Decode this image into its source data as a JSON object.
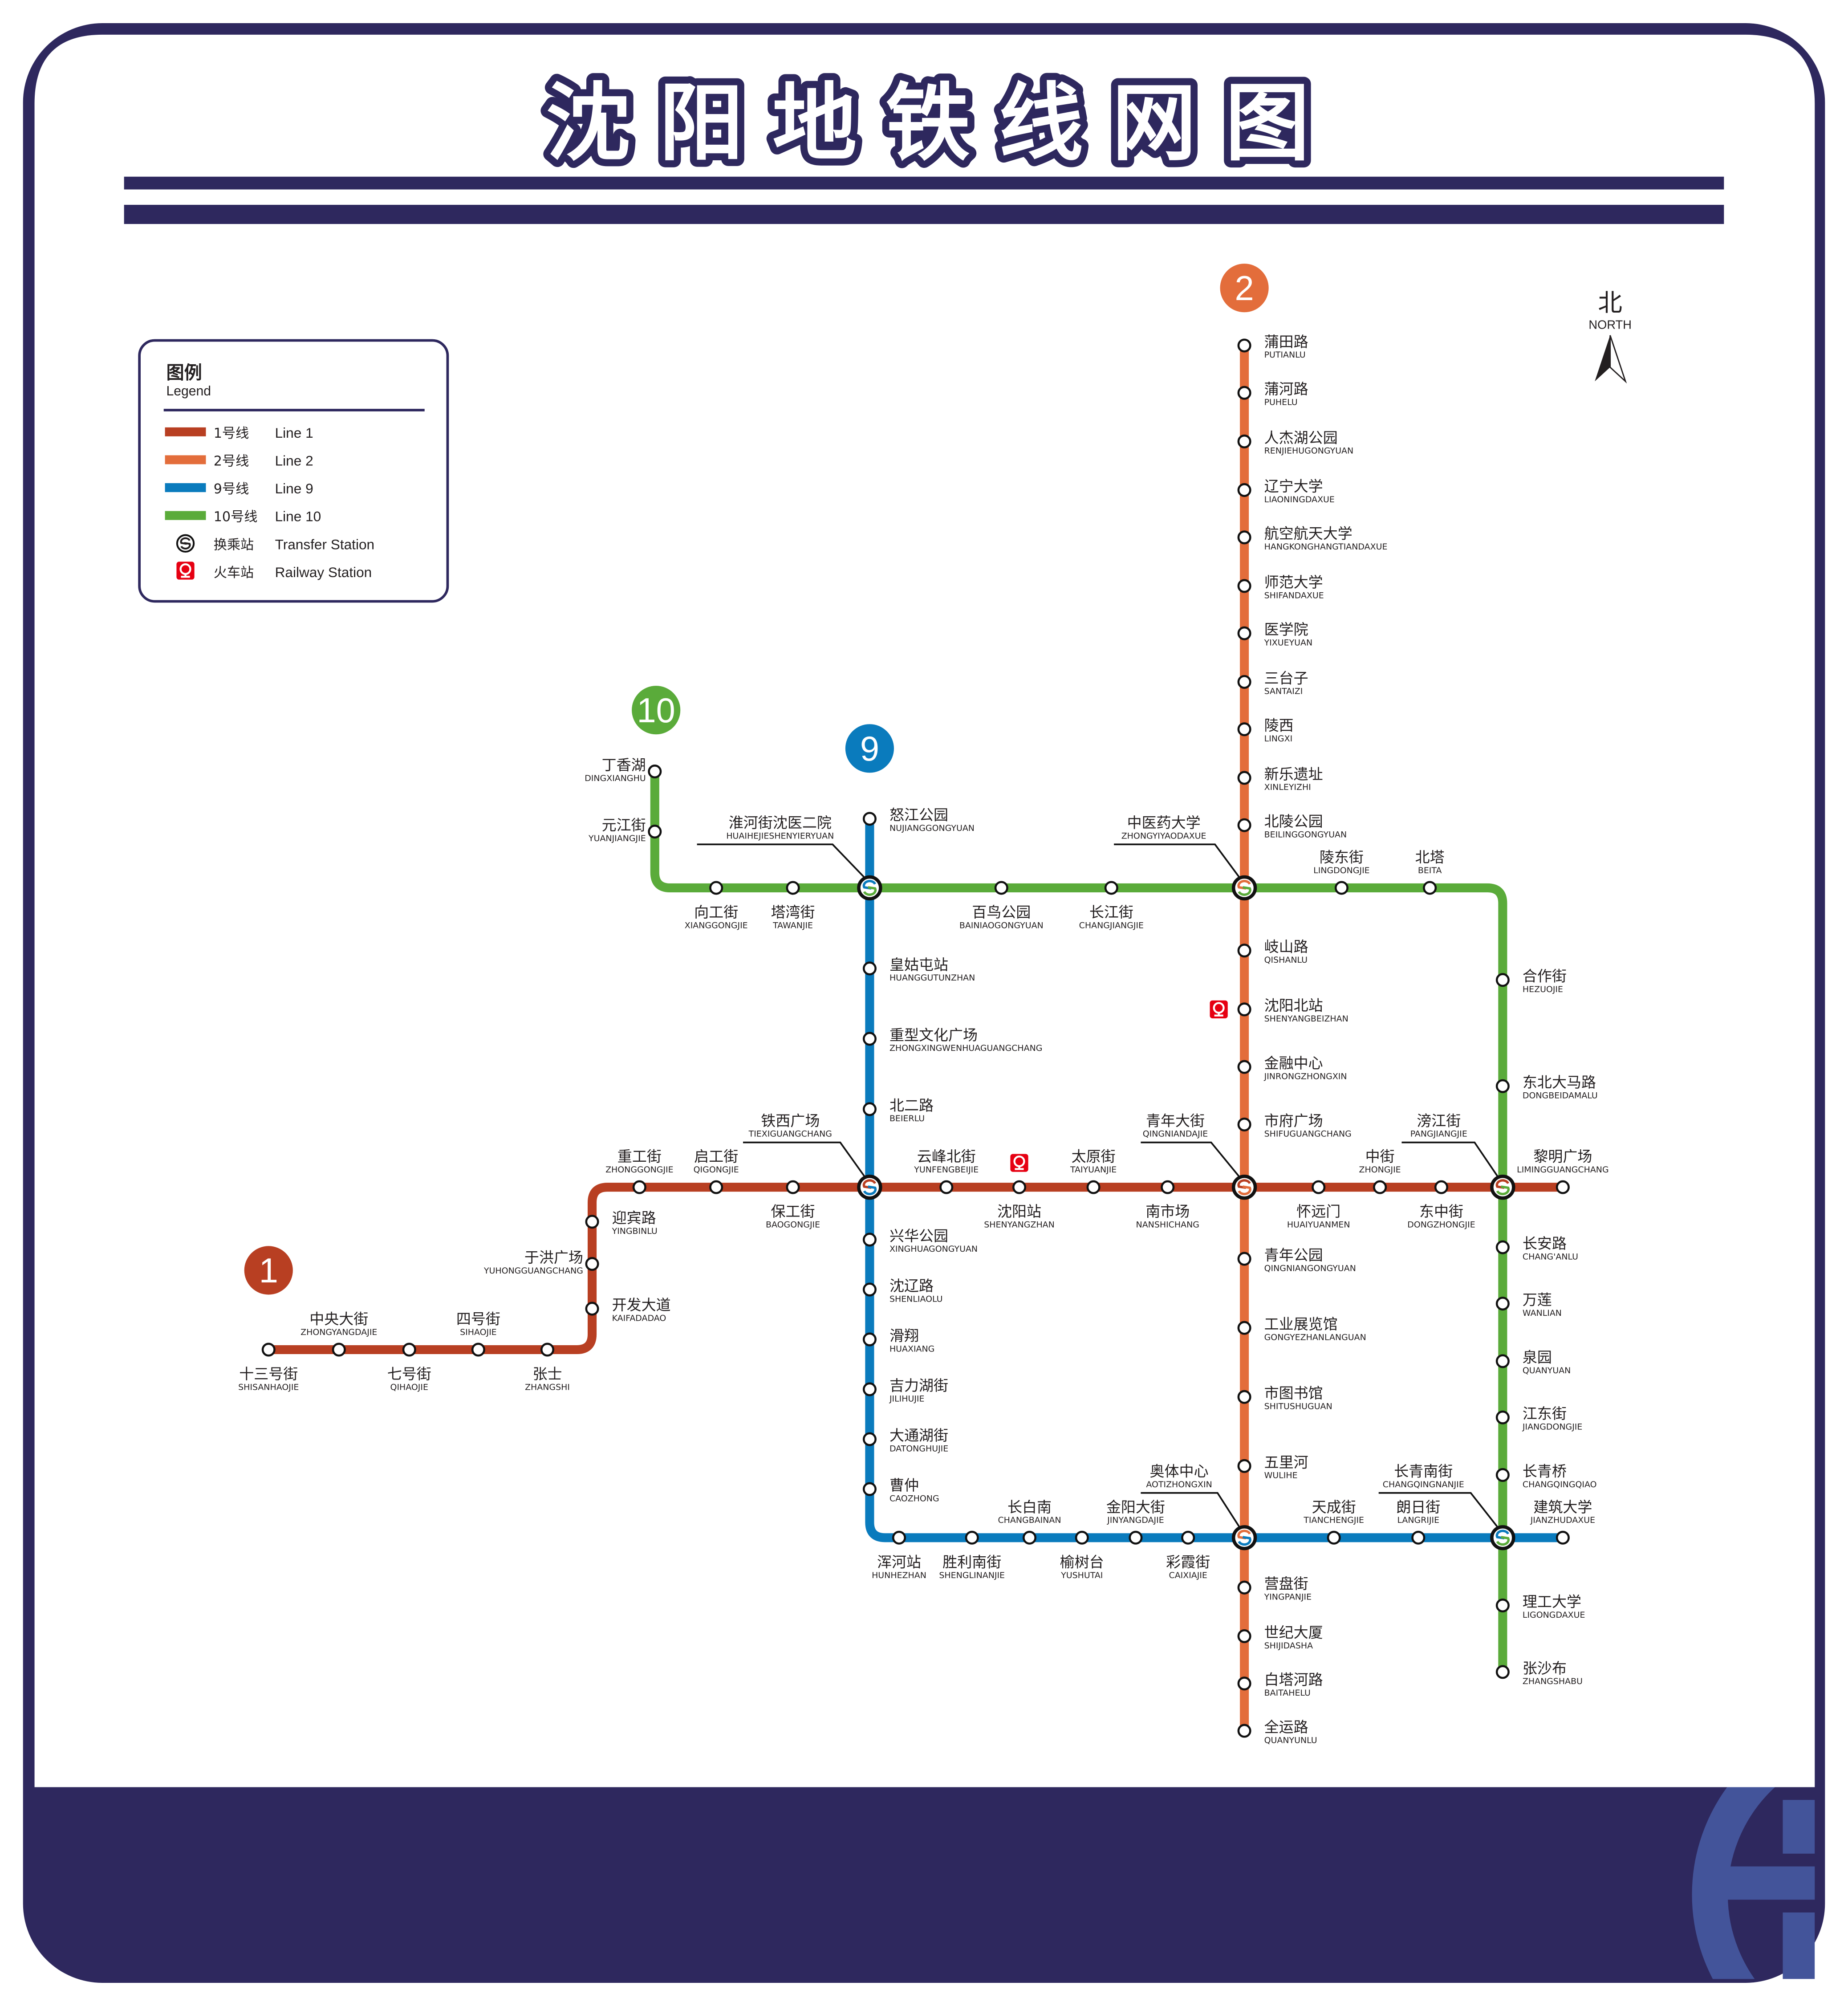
{
  "title": "沈阳地铁线网图",
  "title_chars": [
    "沈",
    "阳",
    "地",
    "铁",
    "线",
    "网",
    "图"
  ],
  "colors": {
    "frame": "#2e285e",
    "logo": "#43549a",
    "railway": "#e60012"
  },
  "compass": {
    "cn": "北",
    "en": "NORTH",
    "icon": "north-arrow-icon"
  },
  "legend": {
    "title_cn": "图例",
    "title_en": "Legend",
    "items": [
      {
        "cn": "1号线",
        "en": "Line 1",
        "color": "#b83f22"
      },
      {
        "cn": "2号线",
        "en": "Line 2",
        "color": "#e36d3b"
      },
      {
        "cn": "9号线",
        "en": "Line 9",
        "color": "#0a7bbd"
      },
      {
        "cn": "10号线",
        "en": "Line 10",
        "color": "#5aab3a"
      },
      {
        "cn": "换乘站",
        "en": "Transfer Station",
        "icon": "transfer-station-icon"
      },
      {
        "cn": "火车站",
        "en": "Railway Station",
        "icon": "railway-station-icon"
      }
    ]
  },
  "lines": [
    {
      "badge": "1",
      "color": "#b83f22",
      "stations": [
        {
          "cn": "十三号街",
          "py": "SHISANHAOJIE"
        },
        {
          "cn": "中央大街",
          "py": "ZHONGYANGDAJIE"
        },
        {
          "cn": "七号街",
          "py": "QIHAOJIE"
        },
        {
          "cn": "四号街",
          "py": "SIHAOJIE"
        },
        {
          "cn": "张士",
          "py": "ZHANGSHI"
        },
        {
          "cn": "开发大道",
          "py": "KAIFADADAO"
        },
        {
          "cn": "于洪广场",
          "py": "YUHONGGUANGCHANG"
        },
        {
          "cn": "迎宾路",
          "py": "YINGBINLU"
        },
        {
          "cn": "重工街",
          "py": "ZHONGGONGJIE"
        },
        {
          "cn": "启工街",
          "py": "QIGONGJIE"
        },
        {
          "cn": "保工街",
          "py": "BAOGONGJIE"
        },
        {
          "cn": "铁西广场",
          "py": "TIEXIGUANGCHANG",
          "transfer": true
        },
        {
          "cn": "云峰北街",
          "py": "YUNFENGBEIJIE"
        },
        {
          "cn": "沈阳站",
          "py": "SHENYANGZHAN",
          "railway": true
        },
        {
          "cn": "太原街",
          "py": "TAIYUANJIE"
        },
        {
          "cn": "南市场",
          "py": "NANSHICHANG"
        },
        {
          "cn": "青年大街",
          "py": "QINGNIANDAJIE",
          "transfer": true
        },
        {
          "cn": "怀远门",
          "py": "HUAIYUANMEN"
        },
        {
          "cn": "中街",
          "py": "ZHONGJIE"
        },
        {
          "cn": "东中街",
          "py": "DONGZHONGJIE"
        },
        {
          "cn": "滂江街",
          "py": "PANGJIANGJIE",
          "transfer": true
        },
        {
          "cn": "黎明广场",
          "py": "LIMINGGUANGCHANG"
        }
      ]
    },
    {
      "badge": "2",
      "color": "#e36d3b",
      "stations": [
        {
          "cn": "蒲田路",
          "py": "PUTIANLU"
        },
        {
          "cn": "蒲河路",
          "py": "PUHELU"
        },
        {
          "cn": "人杰湖公园",
          "py": "RENJIEHUGONGYUAN"
        },
        {
          "cn": "辽宁大学",
          "py": "LIAONINGDAXUE"
        },
        {
          "cn": "航空航天大学",
          "py": "HANGKONGHANGTIANDAXUE"
        },
        {
          "cn": "师范大学",
          "py": "SHIFANDAXUE"
        },
        {
          "cn": "医学院",
          "py": "YIXUEYUAN"
        },
        {
          "cn": "三台子",
          "py": "SANTAIZI"
        },
        {
          "cn": "陵西",
          "py": "LINGXI"
        },
        {
          "cn": "新乐遗址",
          "py": "XINLEYIZHI"
        },
        {
          "cn": "北陵公园",
          "py": "BEILINGGONGYUAN"
        },
        {
          "cn": "中医药大学",
          "py": "ZHONGYIYAODAXUE",
          "transfer": true
        },
        {
          "cn": "岐山路",
          "py": "QISHANLU"
        },
        {
          "cn": "沈阳北站",
          "py": "SHENYANGBEIZHAN",
          "railway": true
        },
        {
          "cn": "金融中心",
          "py": "JINRONGZHONGXIN"
        },
        {
          "cn": "市府广场",
          "py": "SHIFUGUANGCHANG"
        },
        {
          "cn": "青年大街",
          "py": "QINGNIANDAJIE",
          "transfer": true
        },
        {
          "cn": "青年公园",
          "py": "QINGNIANGONGYUAN"
        },
        {
          "cn": "工业展览馆",
          "py": "GONGYEZHANLANGUAN"
        },
        {
          "cn": "市图书馆",
          "py": "SHITUSHUGUAN"
        },
        {
          "cn": "五里河",
          "py": "WULIHE"
        },
        {
          "cn": "奥体中心",
          "py": "AOTIZHONGXIN",
          "transfer": true
        },
        {
          "cn": "营盘街",
          "py": "YINGPANJIE"
        },
        {
          "cn": "世纪大厦",
          "py": "SHIJIDASHA"
        },
        {
          "cn": "白塔河路",
          "py": "BAITAHELU"
        },
        {
          "cn": "全运路",
          "py": "QUANYUNLU"
        }
      ]
    },
    {
      "badge": "9",
      "color": "#0a7bbd",
      "stations": [
        {
          "cn": "怒江公园",
          "py": "NUJIANGGONGYUAN"
        },
        {
          "cn": "淮河街沈医二院",
          "py": "HUAIHEJIESHENYIERYUAN",
          "transfer": true
        },
        {
          "cn": "皇姑屯站",
          "py": "HUANGGUTUNZHAN"
        },
        {
          "cn": "重型文化广场",
          "py": "ZHONGXINGWENHUAGUANGCHANG"
        },
        {
          "cn": "北二路",
          "py": "BEIERLU"
        },
        {
          "cn": "铁西广场",
          "py": "TIEXIGUANGCHANG",
          "transfer": true
        },
        {
          "cn": "兴华公园",
          "py": "XINGHUAGONGYUAN"
        },
        {
          "cn": "沈辽路",
          "py": "SHENLIAOLU"
        },
        {
          "cn": "滑翔",
          "py": "HUAXIANG"
        },
        {
          "cn": "吉力湖街",
          "py": "JILIHUJIE"
        },
        {
          "cn": "大通湖街",
          "py": "DATONGHUJIE"
        },
        {
          "cn": "曹仲",
          "py": "CAOZHONG"
        },
        {
          "cn": "浑河站",
          "py": "HUNHEZHAN"
        },
        {
          "cn": "胜利南街",
          "py": "SHENGLINANJIE"
        },
        {
          "cn": "长白南",
          "py": "CHANGBAINAN"
        },
        {
          "cn": "榆树台",
          "py": "YUSHUTAI"
        },
        {
          "cn": "金阳大街",
          "py": "JINYANGDAJIE"
        },
        {
          "cn": "彩霞街",
          "py": "CAIXIAJIE"
        },
        {
          "cn": "奥体中心",
          "py": "AOTIZHONGXIN",
          "transfer": true
        },
        {
          "cn": "天成街",
          "py": "TIANCHENGJIE"
        },
        {
          "cn": "朗日街",
          "py": "LANGRIJIE"
        },
        {
          "cn": "长青南街",
          "py": "CHANGQINGNANJIE",
          "transfer": true
        },
        {
          "cn": "建筑大学",
          "py": "JIANZHUDAXUE"
        }
      ]
    },
    {
      "badge": "10",
      "color": "#5aab3a",
      "stations": [
        {
          "cn": "丁香湖",
          "py": "DINGXIANGHU"
        },
        {
          "cn": "元江街",
          "py": "YUANJIANGJIE"
        },
        {
          "cn": "向工街",
          "py": "XIANGGONGJIE"
        },
        {
          "cn": "塔湾街",
          "py": "TAWANJIE"
        },
        {
          "cn": "淮河街沈医二院",
          "py": "HUAIHEJIESHENYIERYUAN",
          "transfer": true
        },
        {
          "cn": "百鸟公园",
          "py": "BAINIAOGONGYUAN"
        },
        {
          "cn": "长江街",
          "py": "CHANGJIANGJIE"
        },
        {
          "cn": "中医药大学",
          "py": "ZHONGYIYAODAXUE",
          "transfer": true
        },
        {
          "cn": "陵东街",
          "py": "LINGDONGJIE"
        },
        {
          "cn": "北塔",
          "py": "BEITA"
        },
        {
          "cn": "合作街",
          "py": "HEZUOJIE"
        },
        {
          "cn": "东北大马路",
          "py": "DONGBEIDAMALU"
        },
        {
          "cn": "滂江街",
          "py": "PANGJIANGJIE",
          "transfer": true
        },
        {
          "cn": "长安路",
          "py": "CHANG'ANLU"
        },
        {
          "cn": "万莲",
          "py": "WANLIAN"
        },
        {
          "cn": "泉园",
          "py": "QUANYUAN"
        },
        {
          "cn": "江东街",
          "py": "JIANGDONGJIE"
        },
        {
          "cn": "长青桥",
          "py": "CHANGQINGQIAO"
        },
        {
          "cn": "长青南街",
          "py": "CHANGQINGNANJIE",
          "transfer": true
        },
        {
          "cn": "理工大学",
          "py": "LIGONGDAXUE"
        },
        {
          "cn": "张沙布",
          "py": "ZHANGSHABU"
        }
      ]
    }
  ]
}
